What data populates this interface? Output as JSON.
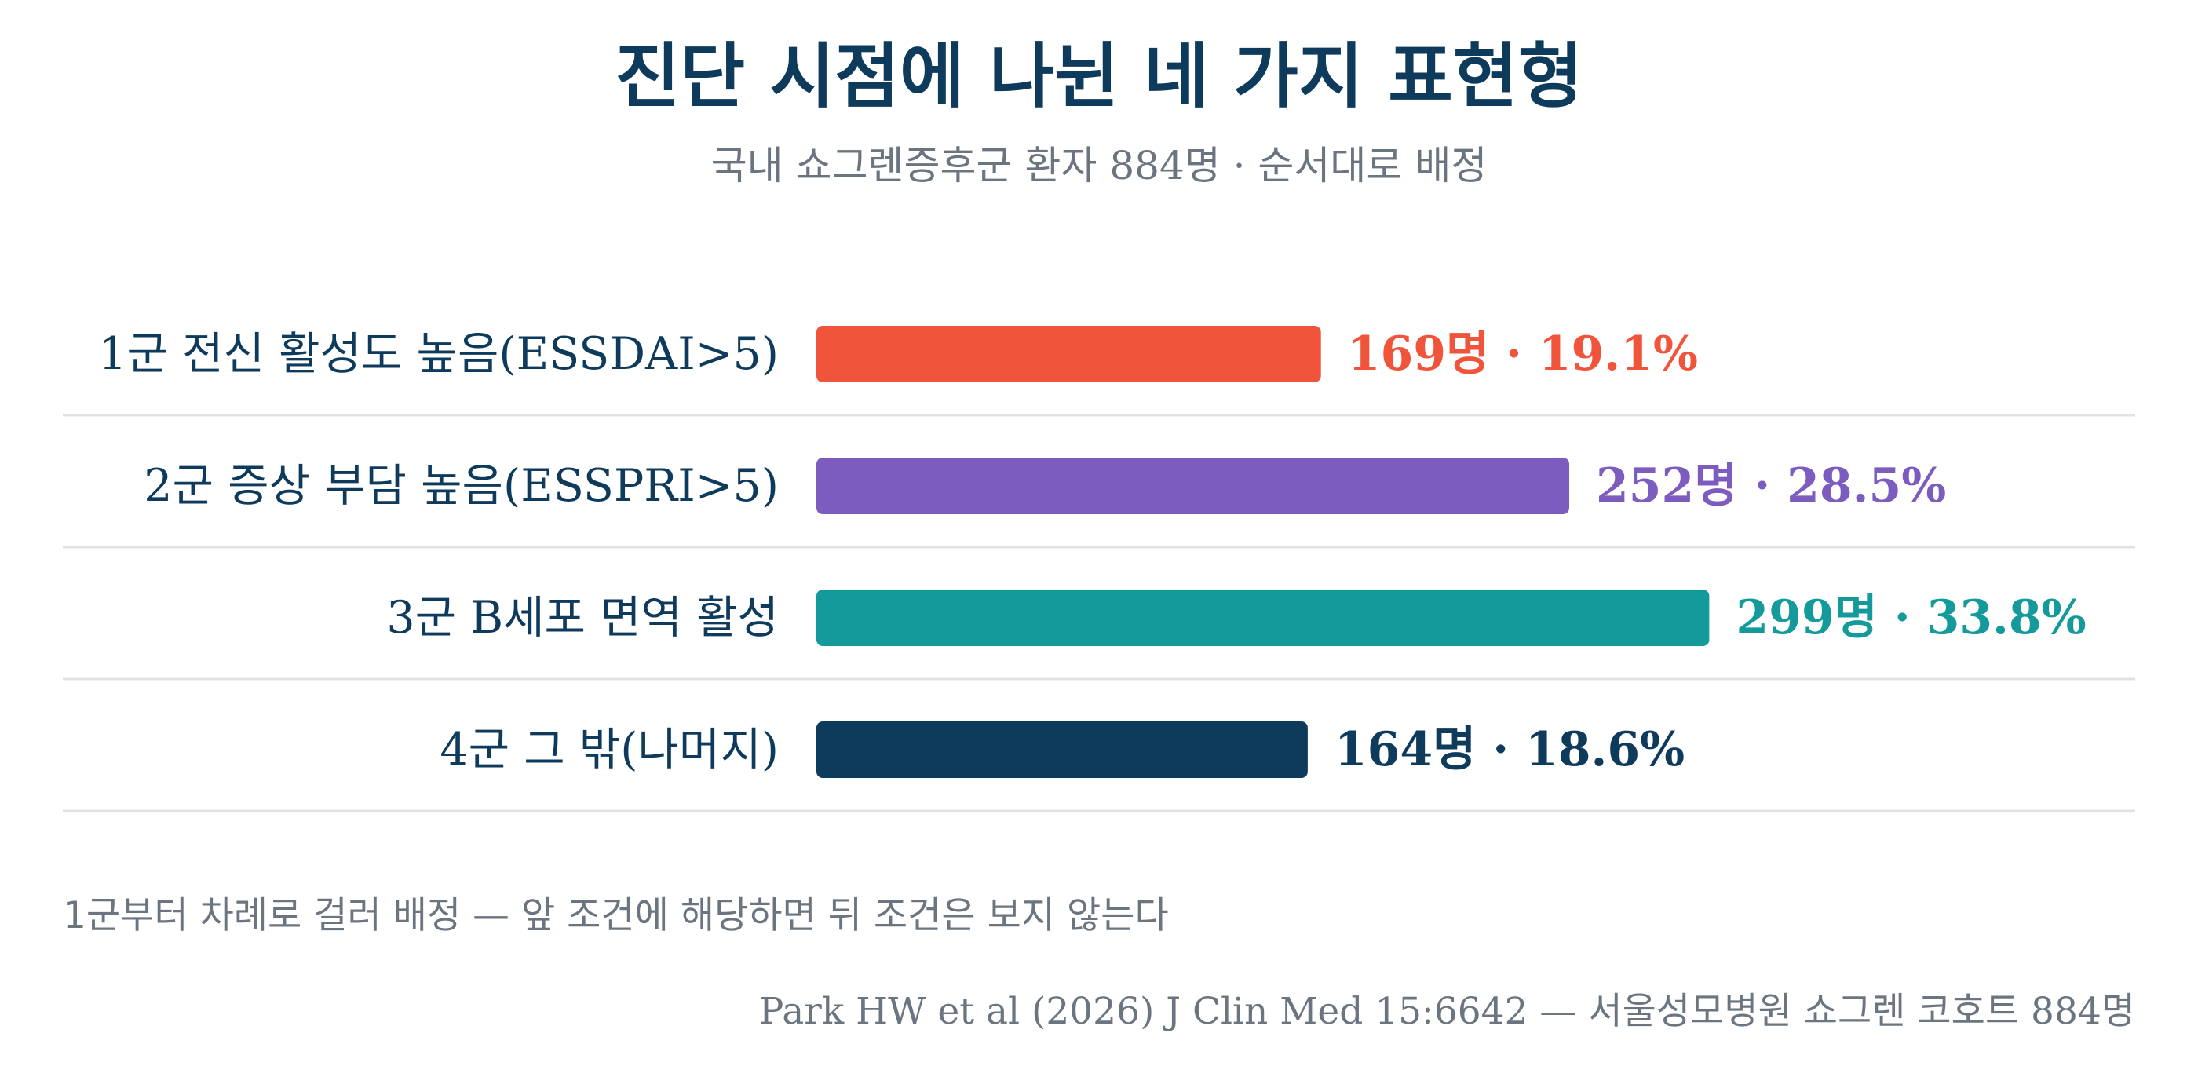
{
  "chart_data": {
    "type": "bar",
    "orientation": "horizontal",
    "title": "진단 시점에 나뉜 네 가지 표현형",
    "subtitle": "국내 쇼그렌증후군 환자 884명 · 순서대로 배정",
    "categories": [
      "1군 전신 활성도 높음(ESSDAI>5)",
      "2군 증상 부담 높음(ESSPRI>5)",
      "3군 B세포 면역 활성",
      "4군 그 밖(나머지)"
    ],
    "values": [
      169,
      252,
      299,
      164
    ],
    "percents": [
      19.1,
      28.5,
      33.8,
      18.6
    ],
    "value_labels": [
      "169명 · 19.1%",
      "252명 · 28.5%",
      "299명 · 33.8%",
      "164명 · 18.6%"
    ],
    "colors": [
      "#f0553c",
      "#7c5cbf",
      "#149a9a",
      "#0e3a5c"
    ],
    "grid": false,
    "legend": "none",
    "note": "1군부터 차례로 걸러 배정 — 앞 조건에 해당하면 뒤 조건은 보지 않는다",
    "source": "Park HW et al (2026) J Clin Med 15:6642 — 서울성모병원 쇼그렌 코호트 884명"
  }
}
